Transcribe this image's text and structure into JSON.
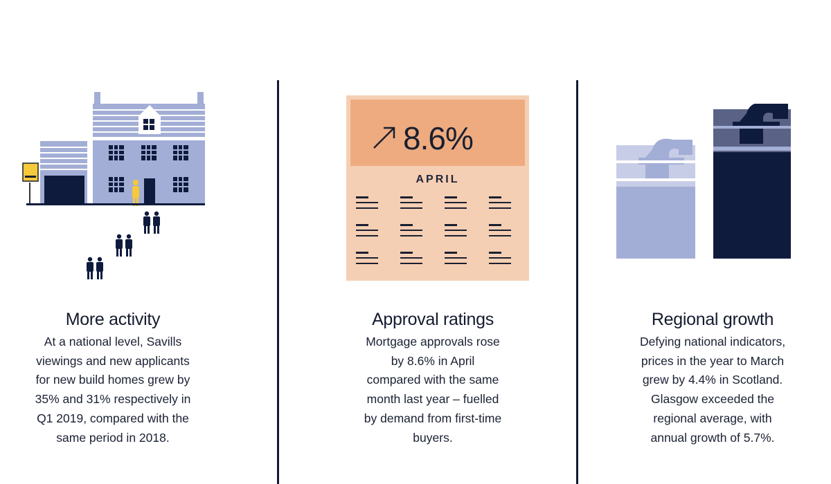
{
  "cards": [
    {
      "title": "More activity",
      "body": "At a national level, Savills viewings and new applicants for new build homes grew by 35% and 31% respectively in Q1 2019, compared with the same period in 2018."
    },
    {
      "title": "Approval ratings",
      "body": "Mortgage approvals rose by 8.6% in April compared with the same month last year – fuelled by demand from first-time buyers."
    },
    {
      "title": "Regional growth",
      "body": "Defying national indicators, prices in the year to March grew by 4.4% in Scotland. Glasgow exceeded the regional average, with annual growth of 5.7%."
    }
  ],
  "calendar": {
    "value": "8.6%",
    "month": "APRIL",
    "icon": "arrow-up-right-icon"
  },
  "coins": {
    "symbol": "£",
    "icon": "pound-coin-stack-icon"
  },
  "house": {
    "icon": "house-icon",
    "people_icon": "people-pair-icon"
  },
  "colors": {
    "navy": "#0f1b3d",
    "lavender": "#a3aed6",
    "peach_dark": "#eeab7f",
    "peach_light": "#f5cfb4",
    "yellow": "#f5c93a"
  }
}
